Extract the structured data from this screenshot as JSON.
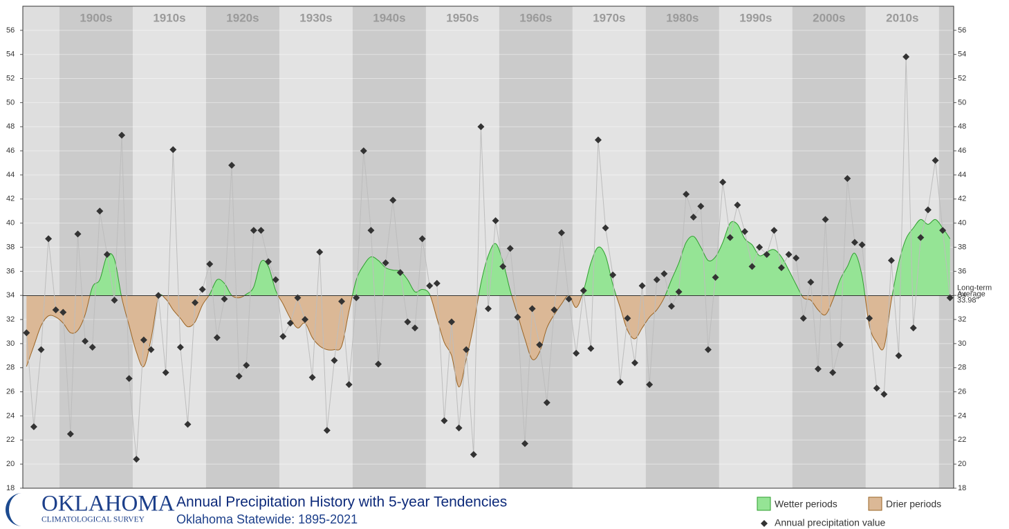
{
  "chart_data": {
    "type": "line",
    "title": "Annual Precipitation History with 5-year Tendencies",
    "subtitle": "Oklahoma Statewide: 1895-2021",
    "logo": {
      "name": "OKLAHOMA",
      "sub": "CLIMATOLOGICAL SURVEY"
    },
    "decades": [
      "1900s",
      "1910s",
      "1920s",
      "1930s",
      "1940s",
      "1950s",
      "1960s",
      "1970s",
      "1980s",
      "1990s",
      "2000s",
      "2010s"
    ],
    "xlim": [
      1894.5,
      2021.5
    ],
    "ylim": [
      18,
      58
    ],
    "yticks": [
      18,
      20,
      22,
      24,
      26,
      28,
      30,
      32,
      34,
      36,
      38,
      40,
      42,
      44,
      46,
      48,
      50,
      52,
      54,
      56
    ],
    "average": 33.98,
    "average_label": [
      "Long-term",
      "Average",
      "33.98\""
    ],
    "x": [
      1895,
      1896,
      1897,
      1898,
      1899,
      1900,
      1901,
      1902,
      1903,
      1904,
      1905,
      1906,
      1907,
      1908,
      1909,
      1910,
      1911,
      1912,
      1913,
      1914,
      1915,
      1916,
      1917,
      1918,
      1919,
      1920,
      1921,
      1922,
      1923,
      1924,
      1925,
      1926,
      1927,
      1928,
      1929,
      1930,
      1931,
      1932,
      1933,
      1934,
      1935,
      1936,
      1937,
      1938,
      1939,
      1940,
      1941,
      1942,
      1943,
      1944,
      1945,
      1946,
      1947,
      1948,
      1949,
      1950,
      1951,
      1952,
      1953,
      1954,
      1955,
      1956,
      1957,
      1958,
      1959,
      1960,
      1961,
      1962,
      1963,
      1964,
      1965,
      1966,
      1967,
      1968,
      1969,
      1970,
      1971,
      1972,
      1973,
      1974,
      1975,
      1976,
      1977,
      1978,
      1979,
      1980,
      1981,
      1982,
      1983,
      1984,
      1985,
      1986,
      1987,
      1988,
      1989,
      1990,
      1991,
      1992,
      1993,
      1994,
      1995,
      1996,
      1997,
      1998,
      1999,
      2000,
      2001,
      2002,
      2003,
      2004,
      2005,
      2006,
      2007,
      2008,
      2009,
      2010,
      2011,
      2012,
      2013,
      2014,
      2015,
      2016,
      2017,
      2018,
      2019,
      2020,
      2021
    ],
    "series": [
      {
        "name": "Annual precipitation value",
        "color": "#333333",
        "line_color": "#bdbdbd",
        "values": [
          30.9,
          23.1,
          29.5,
          38.7,
          32.8,
          32.6,
          22.5,
          39.1,
          30.2,
          29.7,
          41.0,
          37.4,
          33.6,
          47.3,
          27.1,
          20.4,
          30.3,
          29.5,
          34.0,
          27.6,
          46.1,
          29.7,
          23.3,
          33.4,
          34.5,
          36.6,
          30.5,
          33.7,
          44.8,
          27.3,
          28.2,
          39.4,
          39.4,
          36.8,
          35.3,
          30.6,
          31.7,
          33.8,
          32.0,
          27.2,
          37.6,
          22.8,
          28.6,
          33.5,
          26.6,
          33.8,
          46.0,
          39.4,
          28.3,
          36.7,
          41.9,
          35.9,
          31.8,
          31.3,
          38.7,
          34.8,
          35.0,
          23.6,
          31.8,
          23.0,
          29.5,
          20.8,
          48.0,
          32.9,
          40.2,
          36.4,
          37.9,
          32.2,
          21.7,
          32.9,
          29.9,
          25.1,
          32.8,
          39.2,
          33.7,
          29.2,
          34.4,
          29.6,
          46.9,
          39.6,
          35.7,
          26.8,
          32.1,
          28.4,
          34.8,
          26.6,
          35.3,
          35.8,
          33.1,
          34.3,
          42.4,
          40.5,
          41.4,
          29.5,
          35.5,
          43.4,
          38.8,
          41.5,
          39.3,
          36.4,
          38.0,
          37.4,
          39.4,
          36.3,
          37.4,
          37.1,
          32.1,
          35.1,
          27.9,
          40.3,
          27.6,
          29.9,
          43.7,
          38.4,
          38.2,
          32.1,
          26.3,
          25.8,
          36.9,
          29.0,
          53.8,
          31.3,
          38.8,
          41.1,
          45.2,
          39.4,
          33.8
        ]
      }
    ],
    "tendency": {
      "above": {
        "name": "Wetter periods",
        "color": "#95e495",
        "line": "#2e9e2e"
      },
      "below": {
        "name": "Drier periods",
        "color": "#dbb896",
        "line": "#9a6424"
      },
      "values": [
        28.1,
        29.8,
        31.5,
        32.3,
        32.2,
        31.7,
        30.9,
        31.1,
        32.4,
        34.7,
        35.3,
        37.3,
        37.0,
        33.8,
        31.5,
        29.3,
        28.1,
        30.4,
        33.8,
        33.7,
        32.8,
        32.1,
        31.4,
        31.8,
        33.2,
        34.1,
        35.3,
        35.0,
        34.0,
        33.8,
        34.1,
        34.7,
        36.8,
        36.4,
        34.4,
        33.3,
        32.1,
        31.3,
        31.7,
        30.5,
        29.8,
        29.5,
        29.5,
        29.8,
        32.7,
        35.3,
        36.5,
        37.2,
        36.9,
        36.3,
        36.1,
        36.0,
        35.3,
        34.3,
        34.5,
        34.1,
        32.1,
        30.1,
        29.0,
        26.4,
        28.7,
        31.5,
        35.0,
        37.3,
        38.3,
        36.8,
        34.4,
        32.4,
        30.4,
        28.7,
        29.3,
        31.3,
        32.4,
        33.3,
        34.0,
        33.0,
        34.4,
        36.7,
        38.0,
        37.3,
        34.9,
        33.0,
        31.1,
        30.4,
        31.3,
        32.2,
        32.8,
        33.8,
        35.3,
        36.7,
        38.4,
        38.9,
        38.0,
        36.9,
        37.2,
        38.4,
        40.0,
        39.9,
        38.7,
        38.2,
        37.3,
        37.6,
        37.8,
        37.2,
        36.1,
        34.9,
        33.8,
        33.6,
        32.8,
        32.4,
        33.6,
        35.3,
        36.4,
        37.5,
        35.6,
        31.5,
        30.1,
        29.7,
        33.6,
        36.7,
        38.7,
        39.6,
        40.3,
        39.9,
        40.3,
        39.6,
        38.7
      ]
    }
  }
}
